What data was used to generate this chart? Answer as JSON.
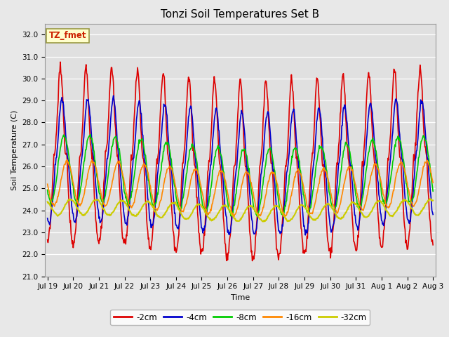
{
  "title": "Tonzi Soil Temperatures Set B",
  "xlabel": "Time",
  "ylabel": "Soil Temperature (C)",
  "ylim": [
    21.0,
    32.5
  ],
  "yticks": [
    21.0,
    22.0,
    23.0,
    24.0,
    25.0,
    26.0,
    27.0,
    28.0,
    29.0,
    30.0,
    31.0,
    32.0
  ],
  "xtick_labels": [
    "Jul 19",
    "Jul 20",
    "Jul 21",
    "Jul 22",
    "Jul 23",
    "Jul 24",
    "Jul 25",
    "Jul 26",
    "Jul 27",
    "Jul 28",
    "Jul 29",
    "Jul 30",
    "Jul 31",
    "Aug 1",
    "Aug 2",
    "Aug 3"
  ],
  "line_colors": [
    "#dd0000",
    "#0000cc",
    "#00cc00",
    "#ff8800",
    "#cccc00"
  ],
  "line_labels": [
    "-2cm",
    "-4cm",
    "-8cm",
    "-16cm",
    "-32cm"
  ],
  "annotation_text": "TZ_fmet",
  "annotation_color": "#cc2200",
  "annotation_bg": "#ffffcc",
  "annotation_edge": "#999944",
  "fig_bg": "#e8e8e8",
  "plot_bg": "#e0e0e0",
  "title_fontsize": 11,
  "axis_fontsize": 8,
  "tick_fontsize": 7.5,
  "n_points": 720
}
